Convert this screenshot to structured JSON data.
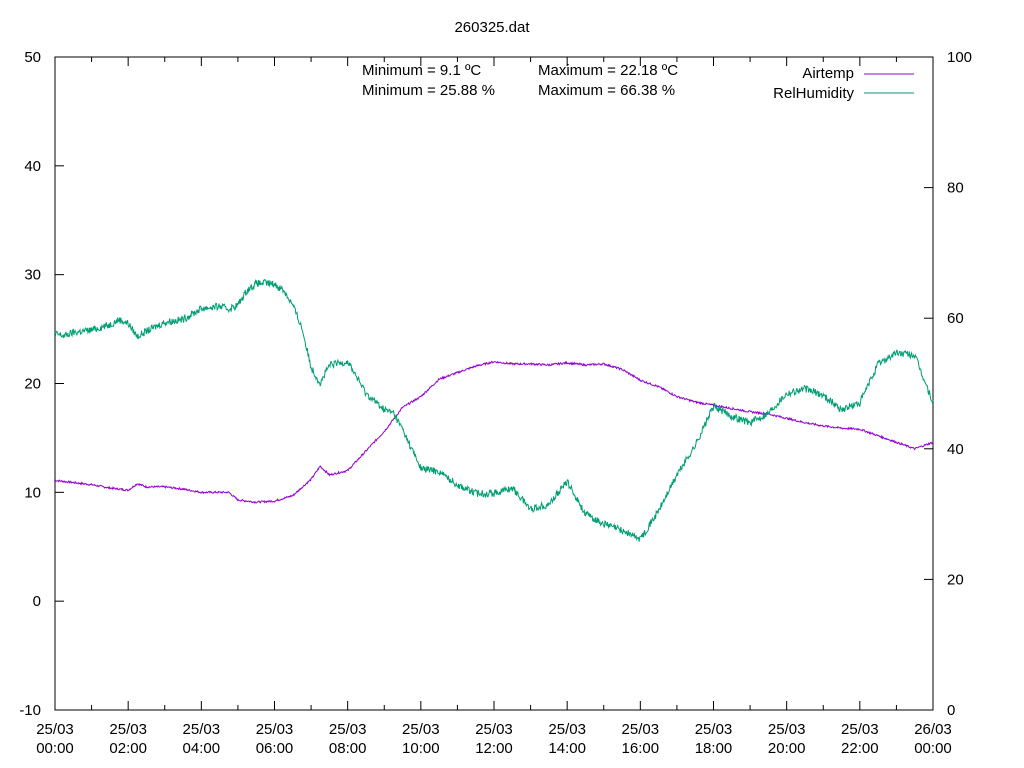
{
  "chart_data": {
    "type": "line",
    "title": "260325.dat",
    "x_axis": {
      "range": [
        "25/03 00:00",
        "26/03 00:00"
      ],
      "tick_labels": [
        [
          "25/03",
          "00:00"
        ],
        [
          "25/03",
          "02:00"
        ],
        [
          "25/03",
          "04:00"
        ],
        [
          "25/03",
          "06:00"
        ],
        [
          "25/03",
          "08:00"
        ],
        [
          "25/03",
          "10:00"
        ],
        [
          "25/03",
          "12:00"
        ],
        [
          "25/03",
          "14:00"
        ],
        [
          "25/03",
          "16:00"
        ],
        [
          "25/03",
          "18:00"
        ],
        [
          "25/03",
          "20:00"
        ],
        [
          "25/03",
          "22:00"
        ],
        [
          "26/03",
          "00:00"
        ]
      ]
    },
    "y_axis_left": {
      "ylim": [
        -10,
        50
      ],
      "ticks": [
        "-10",
        "0",
        "10",
        "20",
        "30",
        "40",
        "50"
      ]
    },
    "y_axis_right": {
      "ylim": [
        0,
        100
      ],
      "ticks": [
        "0",
        "20",
        "40",
        "60",
        "80",
        "100"
      ]
    },
    "grid": false,
    "legend_position": "top-right",
    "annotations": [
      "Minimum = 9.1 ºC",
      "Maximum = 22.18 ºC",
      "Minimum = 25.88 %",
      "Maximum = 66.38 %"
    ],
    "series": [
      {
        "name": "Airtemp",
        "axis": "left",
        "color": "#9400d3",
        "x": [
          "00:00",
          "00:30",
          "01:00",
          "01:30",
          "02:00",
          "02:15",
          "02:30",
          "03:00",
          "03:30",
          "04:00",
          "04:30",
          "04:45",
          "05:00",
          "05:30",
          "06:00",
          "06:30",
          "07:00",
          "07:15",
          "07:30",
          "08:00",
          "08:30",
          "09:00",
          "09:30",
          "10:00",
          "10:30",
          "11:00",
          "11:30",
          "12:00",
          "12:30",
          "13:00",
          "13:30",
          "14:00",
          "14:30",
          "15:00",
          "15:30",
          "16:00",
          "16:30",
          "17:00",
          "17:30",
          "18:00",
          "18:30",
          "19:00",
          "19:30",
          "20:00",
          "20:30",
          "21:00",
          "21:30",
          "22:00",
          "22:30",
          "23:00",
          "23:30",
          "24:00"
        ],
        "y": [
          11.1,
          10.9,
          10.7,
          10.4,
          10.2,
          10.8,
          10.5,
          10.5,
          10.3,
          10.0,
          10.0,
          10.0,
          9.3,
          9.1,
          9.2,
          9.7,
          11.2,
          12.4,
          11.6,
          12.0,
          13.8,
          15.6,
          17.8,
          18.8,
          20.4,
          21.0,
          21.6,
          22.0,
          21.8,
          21.8,
          21.7,
          21.9,
          21.7,
          21.8,
          21.3,
          20.3,
          19.7,
          18.8,
          18.3,
          18.0,
          17.7,
          17.4,
          17.2,
          16.8,
          16.4,
          16.1,
          15.9,
          15.8,
          15.2,
          14.6,
          14.0,
          14.6
        ]
      },
      {
        "name": "RelHumidity",
        "axis": "right",
        "color": "#009e73",
        "x": [
          "00:00",
          "00:15",
          "00:30",
          "01:00",
          "01:30",
          "01:45",
          "02:00",
          "02:15",
          "02:30",
          "03:00",
          "03:30",
          "04:00",
          "04:30",
          "04:45",
          "05:00",
          "05:15",
          "05:30",
          "05:45",
          "06:00",
          "06:15",
          "06:30",
          "06:45",
          "07:00",
          "07:15",
          "07:30",
          "08:00",
          "08:30",
          "09:00",
          "09:15",
          "09:30",
          "10:00",
          "10:30",
          "11:00",
          "11:30",
          "12:00",
          "12:30",
          "13:00",
          "13:30",
          "14:00",
          "14:30",
          "15:00",
          "15:30",
          "16:00",
          "16:30",
          "17:00",
          "17:30",
          "18:00",
          "18:30",
          "19:00",
          "19:30",
          "20:00",
          "20:30",
          "21:00",
          "21:30",
          "22:00",
          "22:30",
          "23:00",
          "23:30",
          "24:00"
        ],
        "y": [
          57.6,
          57.3,
          57.8,
          58.2,
          59.0,
          59.8,
          59.2,
          57.2,
          58.0,
          59.4,
          59.8,
          61.5,
          61.8,
          61.4,
          62.0,
          64.3,
          65.3,
          65.4,
          65.2,
          64.3,
          62.0,
          58.5,
          52.5,
          50.0,
          52.8,
          53.4,
          48.5,
          46.0,
          45.5,
          43.0,
          37.0,
          36.5,
          34.5,
          33.2,
          33.2,
          34.0,
          30.8,
          31.5,
          35.0,
          30.0,
          28.5,
          27.5,
          26.2,
          30.5,
          36.0,
          40.5,
          46.5,
          45.0,
          44.0,
          45.5,
          48.5,
          49.2,
          48.2,
          46.0,
          47.0,
          53.0,
          54.7,
          54.3,
          47.0
        ]
      }
    ]
  }
}
